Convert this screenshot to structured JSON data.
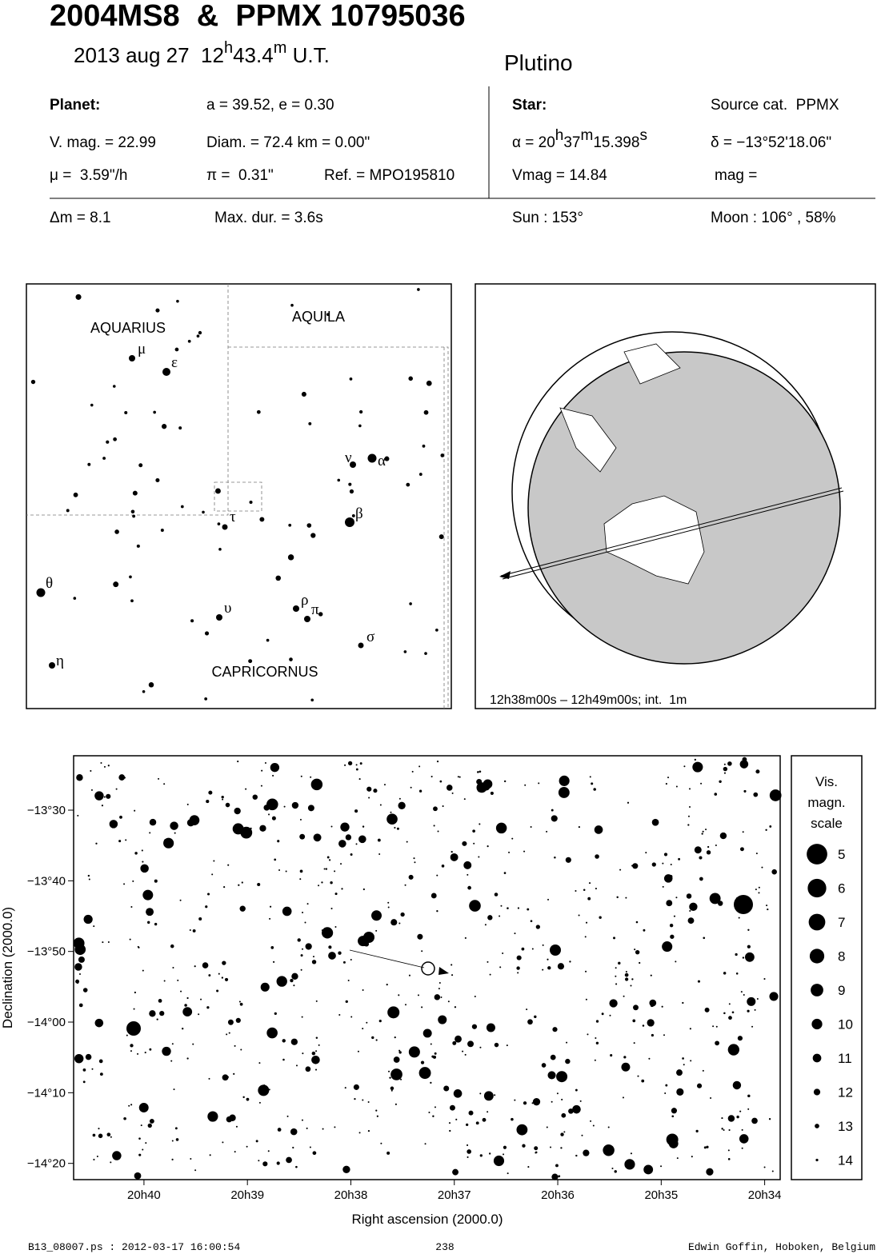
{
  "header": {
    "title": "2004MS8  &  PPMX 10795036",
    "date": [
      "2013 aug 27  12",
      "h",
      "43.4",
      "m",
      " U.T."
    ],
    "class": "Plutino"
  },
  "info": {
    "planet": "Planet:",
    "orbit": "a = 39.52, e = 0.30",
    "vmag": "V. mag. = 22.99",
    "diam": "Diam. = 72.4 km = 0.00\"",
    "mu": "μ =  3.59\"/h",
    "pi": "π =  0.31\"",
    "ref": "Ref. = MPO195810",
    "star": "Star:",
    "source": "Source cat.  PPMX",
    "alpha": [
      "α = 20",
      "h",
      "37",
      "m",
      "15.398",
      "s"
    ],
    "delta": "δ = −13°52'18.06\"",
    "star_vmag": "Vmag = 14.84",
    "mag": "mag =",
    "dm": "Δm = 8.1",
    "maxdur": "Max. dur. = 3.6s",
    "sun": "Sun : 153°",
    "moon": "Moon : 106° , 58%"
  },
  "constellations": {
    "names": [
      "AQUARIUS",
      "AQUILA",
      "CAPRICORNUS"
    ],
    "letters": [
      "μ",
      "ε",
      "ν",
      "α",
      "β",
      "τ",
      "θ",
      "ρ",
      "π",
      "υ",
      "σ",
      "η"
    ]
  },
  "globe": {
    "caption": "12h38m00s – 12h49m00s; int.  1m"
  },
  "starchart": {
    "xlabel": "Right ascension (2000.0)",
    "ylabel": "Declination (2000.0)",
    "xlim": [
      40.68,
      33.85
    ],
    "ylim": [
      -862.3,
      -802.3
    ],
    "xticks": [
      {
        "value": 40,
        "label": "20h40"
      },
      {
        "value": 39,
        "label": "20h39"
      },
      {
        "value": 38,
        "label": "20h38"
      },
      {
        "value": 37,
        "label": "20h37"
      },
      {
        "value": 36,
        "label": "20h36"
      },
      {
        "value": 35,
        "label": "20h35"
      },
      {
        "value": 34,
        "label": "20h34"
      }
    ],
    "yticks": [
      {
        "value": -810,
        "label": "−13°30"
      },
      {
        "value": -820,
        "label": "−13°40"
      },
      {
        "value": -830,
        "label": "−13°50"
      },
      {
        "value": -840,
        "label": "−14°00"
      },
      {
        "value": -850,
        "label": "−14°10"
      },
      {
        "value": -860,
        "label": "−14°20"
      }
    ],
    "legend": {
      "title": [
        "Vis.",
        "magn.",
        "scale"
      ],
      "magnitudes": [
        5,
        6,
        7,
        8,
        9,
        10,
        11,
        12,
        13,
        14
      ]
    }
  },
  "footer": {
    "file": "B13_08007.ps : 2012-03-17 16:00:54",
    "page": "238",
    "author": "Edwin Goffin, Hoboken, Belgium"
  }
}
